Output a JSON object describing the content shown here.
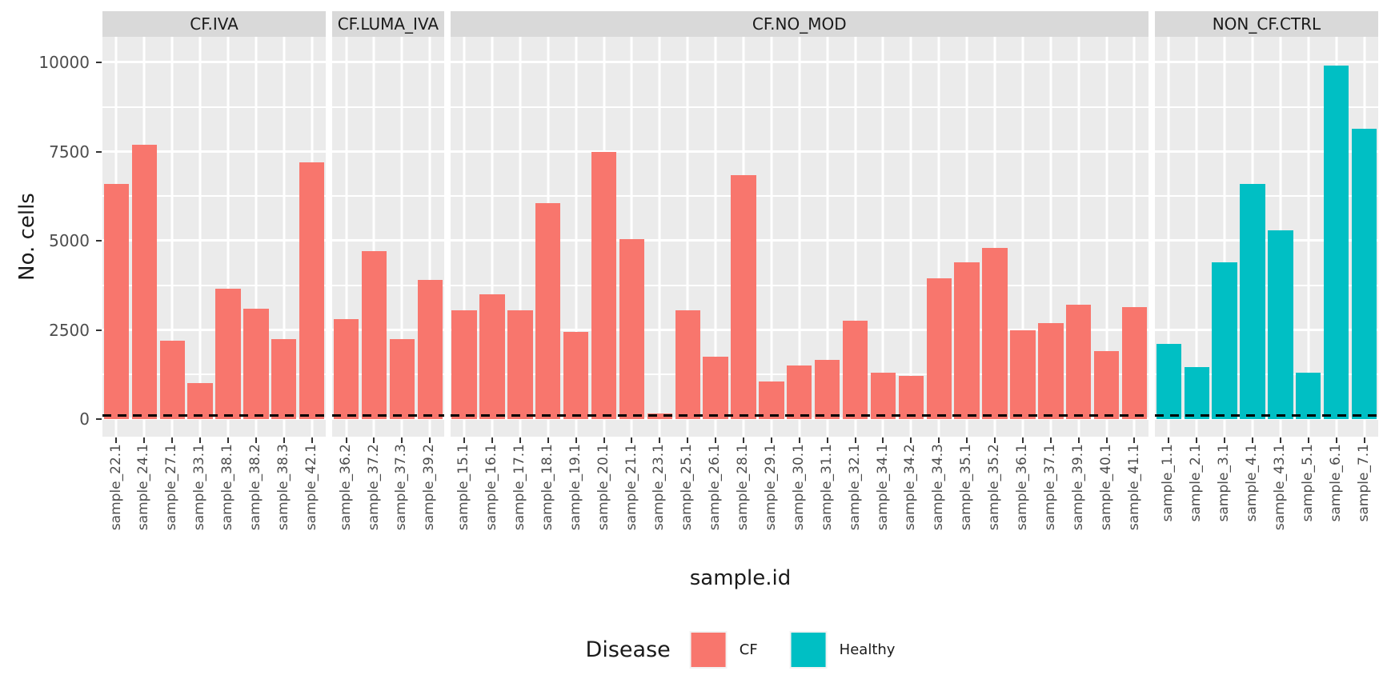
{
  "chart_data": {
    "type": "bar",
    "title": "",
    "xlabel": "sample.id",
    "ylabel": "No. cells",
    "ylim": [
      0,
      10000
    ],
    "yticks": [
      0,
      2500,
      5000,
      7500,
      10000
    ],
    "yticks_minor": [
      1250,
      3750,
      6250,
      8750
    ],
    "grid": true,
    "legend_title": "Disease",
    "legend_position": "bottom",
    "panel_background": "#EBEBEB",
    "strip_background": "#D9D9D9",
    "threshold_line": {
      "y": 100,
      "style": "dashed",
      "color": "#000000"
    },
    "groups": [
      {
        "name": "CF",
        "color": "#F8766D"
      },
      {
        "name": "Healthy",
        "color": "#00BFC4"
      }
    ],
    "facets": [
      {
        "label": "CF.IVA",
        "group": "CF",
        "categories": [
          "sample_22.1",
          "sample_24.1",
          "sample_27.1",
          "sample_33.1",
          "sample_38.1",
          "sample_38.2",
          "sample_38.3",
          "sample_42.1"
        ],
        "values": [
          6600,
          7700,
          2200,
          1000,
          3650,
          3100,
          2250,
          7200
        ]
      },
      {
        "label": "CF.LUMA_IVA",
        "group": "CF",
        "categories": [
          "sample_36.2",
          "sample_37.2",
          "sample_37.3",
          "sample_39.2"
        ],
        "values": [
          2800,
          4700,
          2250,
          3900
        ]
      },
      {
        "label": "CF.NO_MOD",
        "group": "CF",
        "categories": [
          "sample_15.1",
          "sample_16.1",
          "sample_17.1",
          "sample_18.1",
          "sample_19.1",
          "sample_20.1",
          "sample_21.1",
          "sample_23.1",
          "sample_25.1",
          "sample_26.1",
          "sample_28.1",
          "sample_29.1",
          "sample_30.1",
          "sample_31.1",
          "sample_32.1",
          "sample_34.1",
          "sample_34.2",
          "sample_34.3",
          "sample_35.1",
          "sample_35.2",
          "sample_36.1",
          "sample_37.1",
          "sample_39.1",
          "sample_40.1",
          "sample_41.1"
        ],
        "values": [
          3050,
          3500,
          3050,
          6050,
          2450,
          7500,
          5050,
          150,
          3050,
          1750,
          6850,
          1050,
          1500,
          1650,
          2750,
          1300,
          1200,
          3950,
          4400,
          4800,
          2500,
          2700,
          3200,
          1900,
          3150
        ]
      },
      {
        "label": "NON_CF.CTRL",
        "group": "Healthy",
        "categories": [
          "sample_1.1",
          "sample_2.1",
          "sample_3.1",
          "sample_4.1",
          "sample_43.1",
          "sample_5.1",
          "sample_6.1",
          "sample_7.1"
        ],
        "values": [
          2100,
          1450,
          4400,
          6600,
          5300,
          1300,
          9900,
          8150
        ]
      }
    ]
  }
}
